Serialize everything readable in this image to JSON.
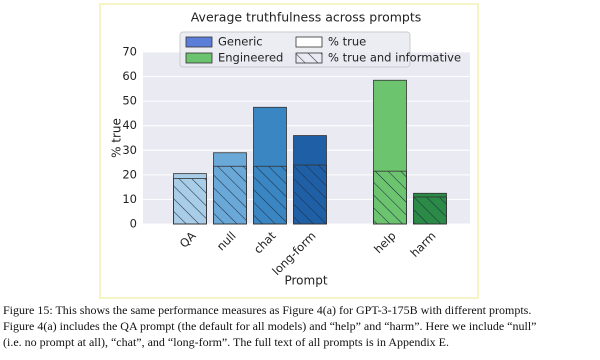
{
  "chart_data": {
    "type": "bar",
    "title": "Average truthfulness across prompts",
    "xlabel": "Prompt",
    "ylabel": "% true",
    "ylim": [
      0,
      70
    ],
    "yticks": [
      0,
      10,
      20,
      30,
      40,
      50,
      60,
      70
    ],
    "grid": true,
    "legend_position": "top",
    "series_styles": [
      {
        "name": "% true",
        "hatch": false
      },
      {
        "name": "% true and informative",
        "hatch": true
      }
    ],
    "groups": [
      {
        "name": "Generic",
        "color": "#5b7fd8",
        "categories": [
          "QA",
          "null",
          "chat",
          "long-form"
        ],
        "bar_colors": [
          "#a9cde6",
          "#6aa8d8",
          "#3a86c3",
          "#1f5fa6"
        ],
        "values": [
          20.5,
          29,
          47.5,
          36
        ],
        "informative_values": [
          18.5,
          23.5,
          23.5,
          24
        ]
      },
      {
        "name": "Engineered",
        "color": "#6cc36f",
        "categories": [
          "help",
          "harm"
        ],
        "bar_colors": [
          "#6dc46f",
          "#2a8a46"
        ],
        "values": [
          58.5,
          12.5
        ],
        "informative_values": [
          21.5,
          11
        ]
      }
    ]
  },
  "caption": [
    "Figure 15: This shows the same performance measures as Figure 4(a) for GPT-3-175B with different prompts.",
    "Figure 4(a) includes the QA prompt (the default for all models) and “help” and “harm”. Here we include “null”",
    "(i.e. no prompt at all), “chat”, and “long-form”. The full text of all prompts is in Appendix E."
  ]
}
